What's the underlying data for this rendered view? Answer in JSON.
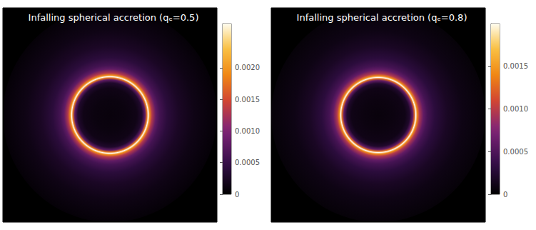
{
  "chart_data": [
    {
      "type": "image",
      "title": "Infalling spherical accretion (qₑ=0.5)",
      "xlim": [
        -14,
        14
      ],
      "ylim": [
        -14,
        14
      ],
      "tick_labels": false,
      "profile": {
        "r": [
          0,
          2,
          3.5,
          4.2,
          4.6,
          4.85,
          5.0,
          5.2,
          5.5,
          6,
          6.5,
          7.5,
          9,
          11,
          14
        ],
        "intensity": [
          8e-05,
          0.0001,
          0.00015,
          0.0003,
          0.0008,
          0.0018,
          0.0027,
          0.0019,
          0.0013,
          0.0008,
          0.0006,
          0.0004,
          0.00025,
          0.00014,
          5e-05
        ]
      },
      "colorbar": {
        "range": [
          0,
          0.0027
        ],
        "ticks": [
          0,
          0.0005,
          {
            "value": 0.001,
            "label": "0.0010"
          },
          0.0015,
          {
            "value": 0.002,
            "label": "0.0020"
          }
        ]
      }
    },
    {
      "type": "image",
      "title": "Infalling spherical accretion (qₑ=0.8)",
      "xlim": [
        -14,
        14
      ],
      "ylim": [
        -14,
        14
      ],
      "tick_labels": false,
      "profile": {
        "r": [
          0,
          2,
          3.5,
          4.1,
          4.5,
          4.75,
          4.9,
          5.1,
          5.4,
          5.9,
          6.4,
          7.4,
          9,
          11,
          14
        ],
        "intensity": [
          6e-05,
          8e-05,
          0.00011,
          0.00022,
          0.0006,
          0.0013,
          0.002,
          0.0014,
          0.00095,
          0.0006,
          0.00045,
          0.0003,
          0.00018,
          0.0001,
          4e-05
        ]
      },
      "colorbar": {
        "range": [
          0,
          0.002
        ],
        "ticks": [
          0,
          0.0005,
          {
            "value": 0.001,
            "label": "0.0010"
          },
          0.0015
        ]
      }
    }
  ]
}
